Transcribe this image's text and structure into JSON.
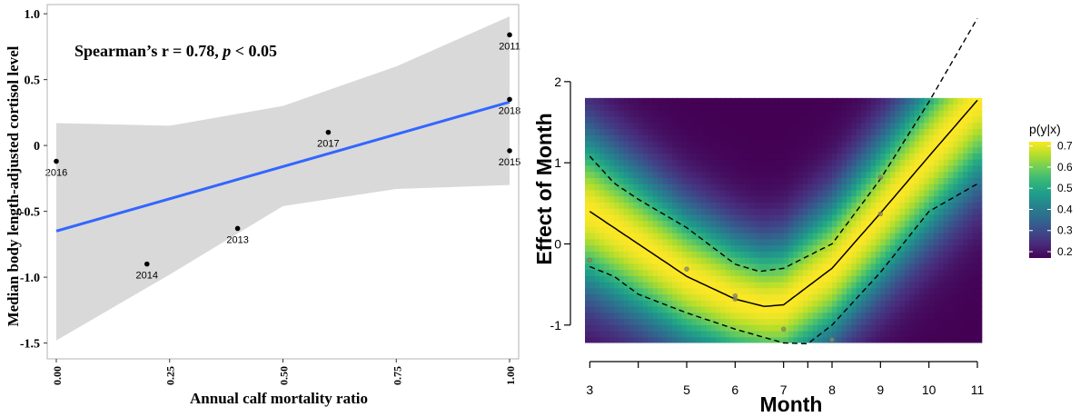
{
  "chart_data": [
    {
      "type": "scatter",
      "title": "Spearman’s r = 0.78, p < 0.05",
      "annotation": {
        "prefix": "Spearman’s r = 0.78, ",
        "italic": "p",
        "suffix": " < 0.05"
      },
      "xlabel": "Annual calf mortality ratio",
      "ylabel": "Median body length-adjusted cortisol level",
      "xlim": [
        -0.02,
        1.02
      ],
      "ylim": [
        -1.62,
        1.07
      ],
      "xticks": [
        0.0,
        0.25,
        0.5,
        0.75,
        1.0
      ],
      "xtick_labels": [
        "0.00",
        "0.25",
        "0.50",
        "0.75",
        "1.00"
      ],
      "yticks": [
        -1.5,
        -1.0,
        -0.5,
        0,
        0.5,
        1.0
      ],
      "ytick_labels": [
        "-1.5",
        "-1.0",
        "-0.5",
        "0",
        "0.5",
        "1.0"
      ],
      "points": [
        {
          "label": "2011",
          "x": 1.0,
          "y": 0.84
        },
        {
          "label": "2018",
          "x": 1.0,
          "y": 0.35
        },
        {
          "label": "2015",
          "x": 1.0,
          "y": -0.04
        },
        {
          "label": "2017",
          "x": 0.6,
          "y": 0.1
        },
        {
          "label": "2016",
          "x": 0.0,
          "y": -0.12
        },
        {
          "label": "2013",
          "x": 0.4,
          "y": -0.63
        },
        {
          "label": "2014",
          "x": 0.2,
          "y": -0.9
        }
      ],
      "fit_line": {
        "x": [
          0.0,
          1.0
        ],
        "y": [
          -0.65,
          0.33
        ],
        "color": "#3366ff"
      },
      "confidence_band": {
        "x": [
          0.0,
          0.25,
          0.5,
          0.75,
          1.0
        ],
        "upper": [
          0.17,
          0.15,
          0.3,
          0.6,
          0.98
        ],
        "lower": [
          -1.48,
          -0.98,
          -0.46,
          -0.33,
          -0.3
        ],
        "color": "#d9d9d9"
      },
      "grid": false
    },
    {
      "type": "heatmap",
      "xlabel": "Month",
      "ylabel": "Effect of Month",
      "xlim": [
        2.6,
        11.6
      ],
      "ylim": [
        -1.45,
        2.95
      ],
      "xticks": [
        3,
        4,
        5,
        6,
        7,
        7.5,
        8,
        9,
        10,
        11
      ],
      "xtick_labels": [
        "3",
        "",
        "5",
        "6",
        "7",
        "",
        "8",
        "9",
        "10",
        "11"
      ],
      "yticks": [
        -1,
        0,
        1,
        2
      ],
      "ytick_labels": [
        "-1",
        "0",
        "1",
        "2"
      ],
      "heat_extent": {
        "x": [
          2.9,
          11.1
        ],
        "y": [
          -1.22,
          1.8
        ]
      },
      "legend": {
        "title": "p(y|x)",
        "min": 0.17,
        "max": 0.72,
        "ticks": [
          0.7,
          0.6,
          0.5,
          0.4,
          0.3,
          0.2
        ],
        "tick_labels": [
          "0.7",
          "0.6",
          "0.5",
          "0.4",
          "0.3",
          "0.2"
        ],
        "colors": [
          "#fde725",
          "#b5de2b",
          "#6ece58",
          "#35b779",
          "#1f9e89",
          "#26828e",
          "#31688e",
          "#3e4989",
          "#482878",
          "#440154"
        ],
        "position": "right"
      },
      "smooth": {
        "x": [
          3,
          4,
          5,
          6,
          6.6,
          7,
          8,
          9,
          10,
          11
        ],
        "y": [
          0.4,
          0.0,
          -0.4,
          -0.68,
          -0.77,
          -0.75,
          -0.3,
          0.38,
          1.08,
          1.77
        ]
      },
      "upper_ci": {
        "x": [
          3,
          3.5,
          4,
          5,
          6,
          6.5,
          7,
          8,
          9,
          10,
          11
        ],
        "y": [
          1.08,
          0.75,
          0.55,
          0.2,
          -0.25,
          -0.34,
          -0.3,
          0.0,
          0.8,
          1.75,
          2.78
        ]
      },
      "lower_ci": {
        "x": [
          3,
          3.5,
          4,
          5,
          6,
          7,
          7.5,
          8,
          9,
          10,
          11
        ],
        "y": [
          -0.28,
          -0.4,
          -0.62,
          -0.85,
          -1.05,
          -1.22,
          -1.23,
          -1.0,
          -0.35,
          0.4,
          0.74
        ]
      },
      "points": [
        {
          "x": 3,
          "y": -0.2
        },
        {
          "x": 5,
          "y": -0.31
        },
        {
          "x": 6,
          "y": -0.64
        },
        {
          "x": 6,
          "y": -0.68
        },
        {
          "x": 7,
          "y": -1.05
        },
        {
          "x": 8,
          "y": -1.18
        },
        {
          "x": 9,
          "y": 0.82
        },
        {
          "x": 9,
          "y": 0.37
        }
      ]
    }
  ]
}
